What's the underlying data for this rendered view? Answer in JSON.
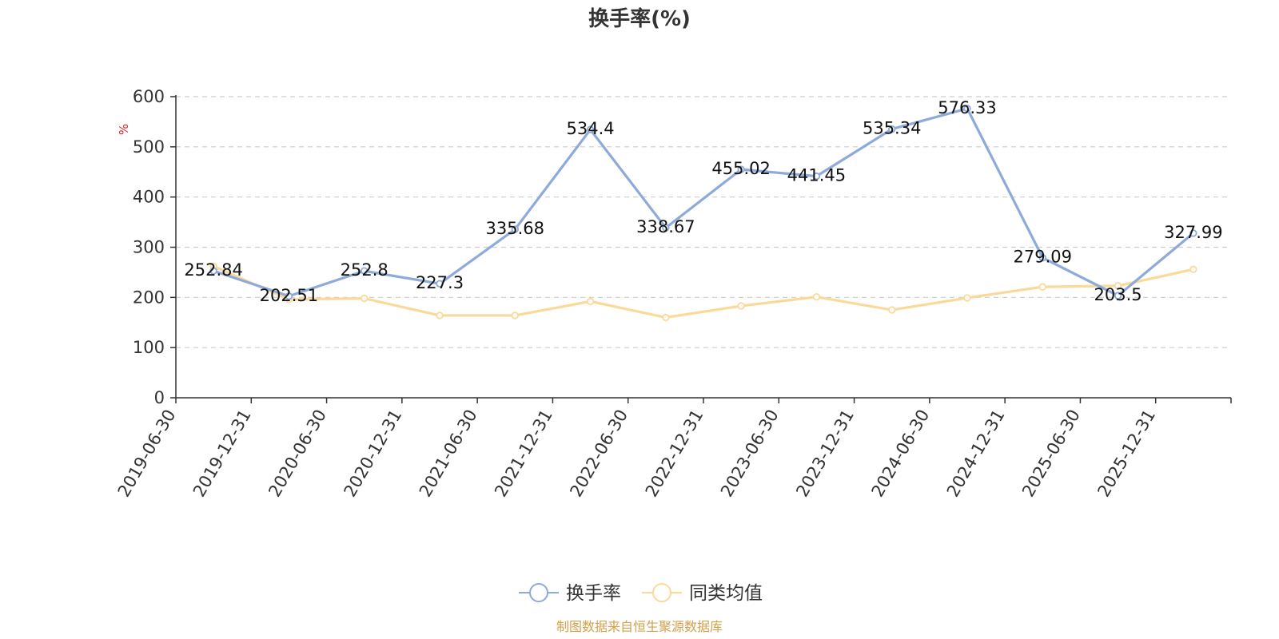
{
  "chart_data": {
    "type": "line",
    "title": "换手率(%)",
    "ylabel": "%",
    "xlabel": "",
    "ylim": [
      0,
      600
    ],
    "yticks": [
      0,
      100,
      200,
      300,
      400,
      500,
      600
    ],
    "grid": true,
    "legend_position": "bottom",
    "categories": [
      "2019-06-30",
      "2019-12-31",
      "2020-06-30",
      "2020-12-31",
      "2021-06-30",
      "2021-12-31",
      "2022-06-30",
      "2022-12-31",
      "2023-06-30",
      "2023-12-31",
      "2024-06-30",
      "2024-12-31",
      "2025-06-30",
      "2025-12-31"
    ],
    "series": [
      {
        "name": "换手率",
        "color": "#8eaadb",
        "values": [
          252.84,
          202.51,
          252.8,
          227.3,
          335.68,
          534.4,
          338.67,
          455.02,
          441.45,
          535.34,
          576.33,
          279.09,
          203.5,
          327.99
        ],
        "labels": [
          "252.84",
          "202.51",
          "252.8",
          "227.3",
          "335.68",
          "534.4",
          "338.67",
          "455.02",
          "441.45",
          "535.34",
          "576.33",
          "279.09",
          "203.5",
          "327.99"
        ]
      },
      {
        "name": "同类均值",
        "color": "#fad99a",
        "values": [
          262,
          196,
          198,
          164,
          164,
          192,
          160,
          183,
          201,
          175,
          199,
          221,
          223,
          256
        ]
      }
    ],
    "source_note": "制图数据来自恒生聚源数据库"
  }
}
